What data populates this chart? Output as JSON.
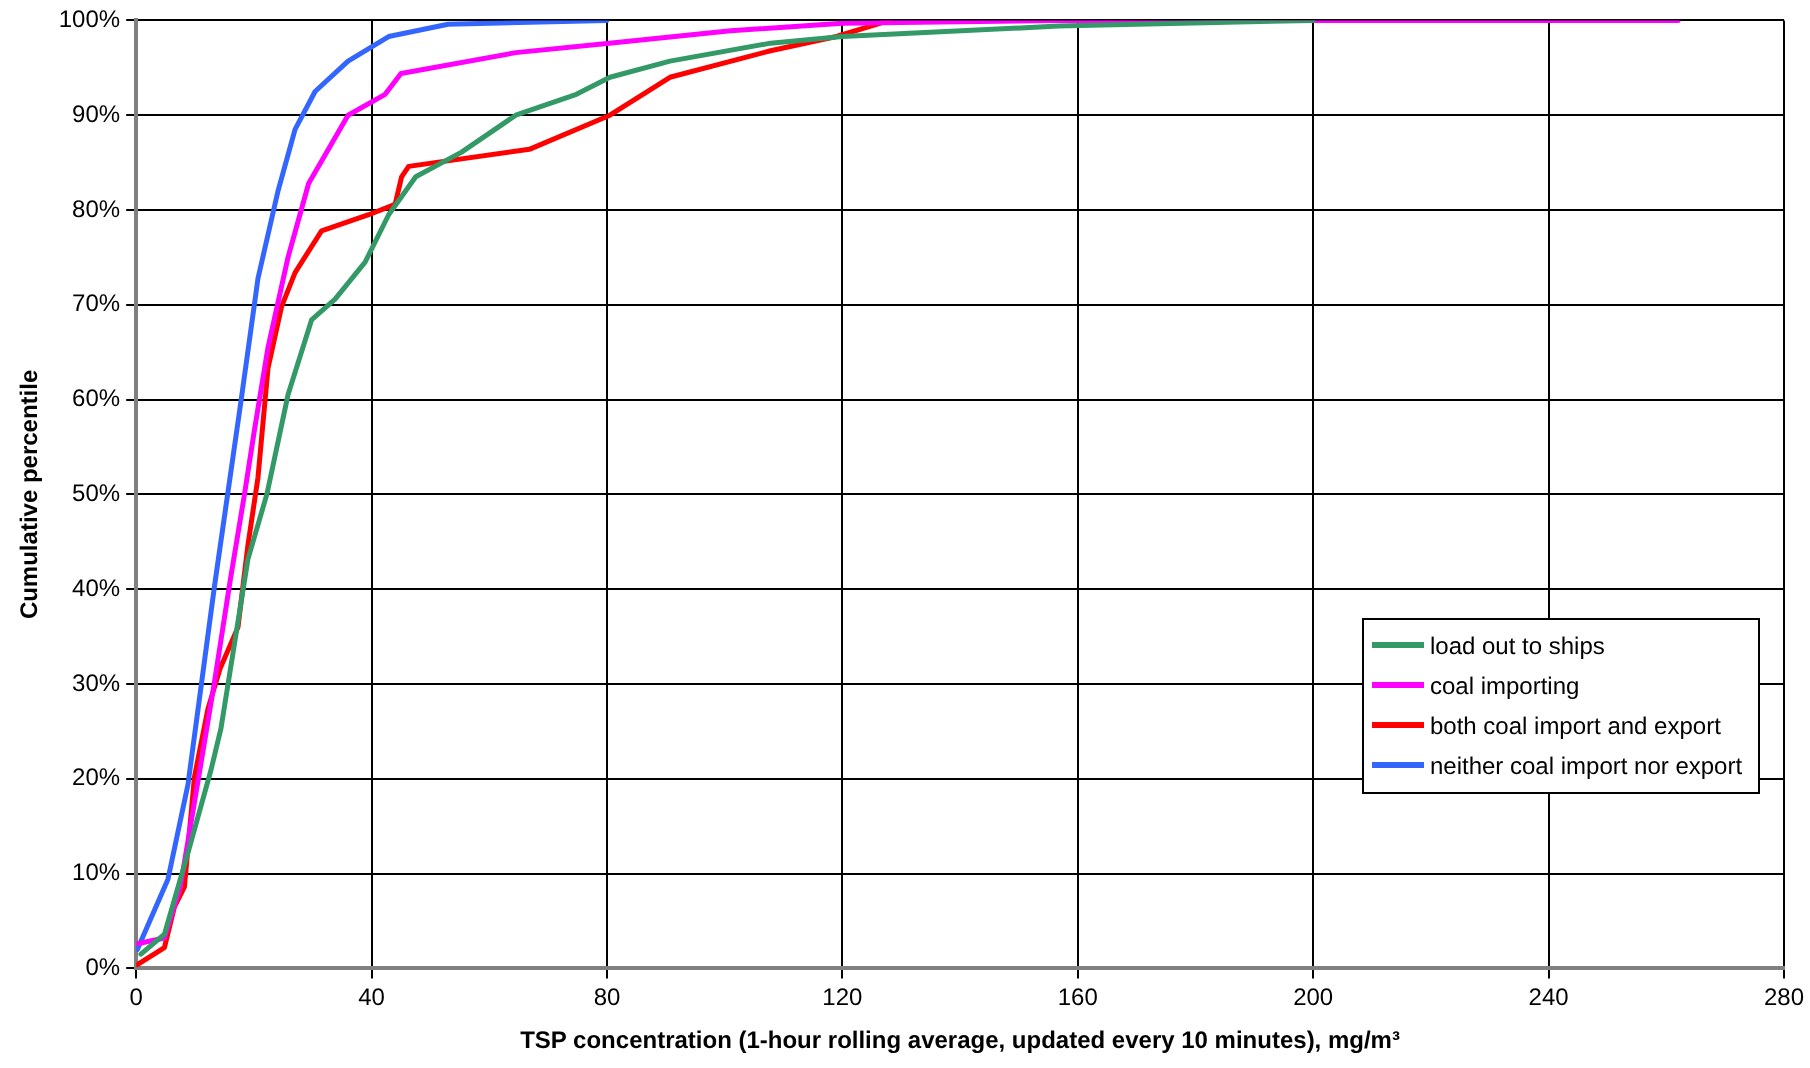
{
  "chart_data": {
    "type": "line",
    "xlabel": "TSP concentration (1-hour rolling average, updated every 10 minutes), mg/m³",
    "ylabel": "Cumulative percentile",
    "xlim": [
      0,
      280
    ],
    "xticks": [
      0,
      40,
      80,
      120,
      160,
      200,
      240,
      280
    ],
    "ylim": [
      0,
      100
    ],
    "yticks": [
      {
        "value": 0,
        "label": "0%"
      },
      {
        "value": 10,
        "label": "10%"
      },
      {
        "value": 20,
        "label": "20%"
      },
      {
        "value": 30,
        "label": "30%"
      },
      {
        "value": 40,
        "label": "40%"
      },
      {
        "value": 50,
        "label": "50%"
      },
      {
        "value": 60,
        "label": "60%"
      },
      {
        "value": 70,
        "label": "70%"
      },
      {
        "value": 80,
        "label": "80%"
      },
      {
        "value": 90,
        "label": "90%"
      },
      {
        "value": 100,
        "label": "100%"
      }
    ],
    "grid": true,
    "legend": "right",
    "marker": "none",
    "line_style": "solid",
    "series": [
      {
        "name": "load out to ships",
        "color": "#339966",
        "x": [
          0.8,
          4.8,
          8.8,
          12.7,
          14.4,
          19,
          22.2,
          25.8,
          29.8,
          33.8,
          38.9,
          42.9,
          47.5,
          55.3,
          64.5,
          74.8,
          80.5,
          90.7,
          107.8,
          120,
          156.7,
          200
        ],
        "values": [
          1.5,
          3.6,
          12.2,
          20.9,
          25.3,
          43.2,
          50,
          60.5,
          68.4,
          70.6,
          74.5,
          79.5,
          83.5,
          86.1,
          90,
          92.2,
          94,
          95.7,
          97.6,
          98.3,
          99.4,
          100
        ]
      },
      {
        "name": "coal importing",
        "color": "#ff00ff",
        "x": [
          0.2,
          4.8,
          7.5,
          11,
          13.3,
          16,
          18.4,
          20.1,
          22.4,
          25.8,
          29.3,
          36,
          42.3,
          45,
          64.5,
          80.4,
          101,
          120,
          156.7,
          262
        ],
        "values": [
          2.6,
          3.2,
          8.6,
          21.6,
          30.2,
          41,
          50,
          56.8,
          65.5,
          75,
          82.8,
          90,
          92.2,
          94.4,
          96.6,
          97.6,
          98.9,
          99.7,
          100,
          100
        ]
      },
      {
        "name": "both coal import and export",
        "color": "#ff0000",
        "x": [
          0.2,
          4.8,
          6.5,
          8.2,
          9.9,
          12.2,
          14.3,
          17.3,
          19,
          20.7,
          22.4,
          24.7,
          27,
          31.5,
          39.5,
          44,
          45.1,
          46.3,
          66.8,
          80.5,
          90.7,
          107.8,
          119,
          128
        ],
        "values": [
          0.4,
          2.2,
          6.5,
          8.6,
          20.2,
          27.4,
          31.7,
          36,
          44.7,
          51.8,
          63.3,
          69.8,
          73.4,
          77.8,
          79.5,
          80.6,
          83.5,
          84.6,
          86.4,
          90,
          94,
          96.8,
          98.3,
          100
        ]
      },
      {
        "name": "neither coal import nor export",
        "color": "#3366ff",
        "x": [
          0.2,
          5.4,
          8.8,
          13.3,
          16,
          17.8,
          20.7,
          24.1,
          27,
          30.4,
          36,
          42.9,
          53,
          80
        ],
        "values": [
          2,
          9.4,
          19.4,
          40.3,
          52,
          59.8,
          72.8,
          82,
          88.5,
          92.5,
          95.7,
          98.3,
          99.6,
          100
        ]
      }
    ]
  }
}
